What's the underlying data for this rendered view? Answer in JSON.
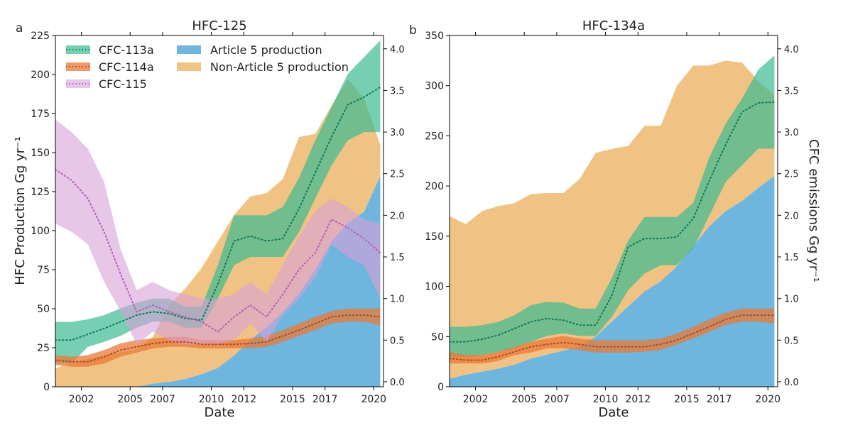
{
  "chart_data": [
    {
      "type": "area",
      "panel_label": "a",
      "title": "HFC-125",
      "xlabel": "Date",
      "ylabel": "HFC Production Gg yr⁻¹",
      "y2label": "",
      "xlim": [
        2000.4,
        2020.6
      ],
      "ylim": [
        0,
        225
      ],
      "y2lim": [
        -0.06,
        4.16
      ],
      "x_ticks": [
        2002,
        2005,
        2007,
        2010,
        2012,
        2015,
        2017,
        2020
      ],
      "x_tick_labels": [
        "2002",
        "2005",
        "2007",
        "2010",
        "2012",
        "2015",
        "2017",
        "2020"
      ],
      "y_ticks": [
        0,
        25,
        50,
        75,
        100,
        125,
        150,
        175,
        200,
        225
      ],
      "y_tick_labels": [
        "0",
        "25",
        "50",
        "75",
        "100",
        "125",
        "150",
        "175",
        "200",
        "225"
      ],
      "y2_ticks": [
        0.0,
        0.5,
        1.0,
        1.5,
        2.0,
        2.5,
        3.0,
        3.5,
        4.0
      ],
      "y2_tick_labels": [
        "0.0",
        "0.5",
        "1.0",
        "1.5",
        "2.0",
        "2.5",
        "3.0",
        "3.5",
        "4.0"
      ],
      "legend_position": "top-left",
      "legend": [
        {
          "label": "CFC-113a",
          "kind": "band"
        },
        {
          "label": "CFC-114a",
          "kind": "band"
        },
        {
          "label": "CFC-115",
          "kind": "band"
        },
        {
          "label": "Article 5 production",
          "kind": "area"
        },
        {
          "label": "Non-Article 5 production",
          "kind": "area"
        }
      ],
      "x": [
        2000.4,
        2001.4,
        2002.4,
        2003.4,
        2004.4,
        2005.4,
        2006.4,
        2007.4,
        2008.4,
        2009.4,
        2010.4,
        2011.4,
        2012.4,
        2013.4,
        2014.4,
        2015.4,
        2016.4,
        2017.4,
        2018.4,
        2019.4,
        2020.4
      ],
      "article5": [
        0,
        0,
        0,
        0,
        0,
        0,
        2,
        3,
        5,
        8,
        12,
        20,
        30,
        38,
        48,
        60,
        75,
        93,
        105,
        112,
        135
      ],
      "nonarticle5_top": [
        12,
        15,
        18,
        20,
        22,
        24,
        32,
        52,
        63,
        76,
        93,
        110,
        122,
        124,
        133,
        160,
        162,
        180,
        197,
        185,
        155
      ],
      "series": [
        {
          "name": "CFC-113a",
          "axis": "right",
          "lower": [
            0.22,
            0.22,
            0.42,
            0.48,
            0.55,
            0.65,
            0.72,
            0.72,
            0.65,
            0.65,
            1.0,
            1.4,
            1.5,
            1.5,
            1.5,
            1.8,
            2.2,
            2.6,
            2.9,
            3.0,
            3.0
          ],
          "center": [
            0.5,
            0.5,
            0.57,
            0.64,
            0.72,
            0.8,
            0.84,
            0.82,
            0.76,
            0.74,
            1.17,
            1.69,
            1.75,
            1.69,
            1.72,
            2.08,
            2.51,
            2.94,
            3.33,
            3.42,
            3.54
          ],
          "upper": [
            0.72,
            0.72,
            0.75,
            0.8,
            0.88,
            0.95,
            1.0,
            1.0,
            0.9,
            0.9,
            1.4,
            2.0,
            2.0,
            2.0,
            2.1,
            2.45,
            2.9,
            3.3,
            3.7,
            3.9,
            4.1
          ]
        },
        {
          "name": "CFC-114a",
          "axis": "right",
          "lower": [
            0.2,
            0.18,
            0.18,
            0.22,
            0.3,
            0.35,
            0.4,
            0.42,
            0.42,
            0.4,
            0.4,
            0.4,
            0.4,
            0.42,
            0.48,
            0.55,
            0.62,
            0.7,
            0.72,
            0.72,
            0.68
          ],
          "center": [
            0.26,
            0.24,
            0.24,
            0.3,
            0.38,
            0.42,
            0.46,
            0.48,
            0.48,
            0.45,
            0.45,
            0.45,
            0.46,
            0.48,
            0.55,
            0.62,
            0.7,
            0.78,
            0.8,
            0.8,
            0.78
          ],
          "upper": [
            0.32,
            0.3,
            0.32,
            0.38,
            0.46,
            0.5,
            0.52,
            0.54,
            0.54,
            0.5,
            0.5,
            0.5,
            0.52,
            0.55,
            0.62,
            0.7,
            0.78,
            0.85,
            0.88,
            0.88,
            0.88
          ]
        },
        {
          "name": "CFC-115",
          "axis": "right",
          "lower": [
            1.9,
            1.8,
            1.65,
            1.2,
            0.85,
            0.45,
            0.6,
            0.5,
            0.45,
            0.45,
            0.45,
            0.5,
            0.7,
            0.48,
            0.8,
            1.0,
            1.25,
            1.65,
            1.5,
            1.4,
            1.0
          ],
          "center": [
            2.55,
            2.42,
            2.2,
            1.8,
            1.3,
            0.84,
            0.92,
            0.84,
            0.78,
            0.72,
            0.6,
            0.78,
            0.92,
            0.78,
            1.05,
            1.35,
            1.55,
            1.95,
            1.85,
            1.72,
            1.55
          ],
          "upper": [
            3.15,
            3.0,
            2.8,
            2.4,
            1.6,
            1.1,
            1.2,
            1.1,
            1.05,
            1.0,
            1.0,
            1.05,
            1.2,
            1.05,
            1.4,
            1.75,
            2.05,
            2.2,
            2.1,
            1.95,
            1.9
          ]
        }
      ]
    },
    {
      "type": "area",
      "panel_label": "b",
      "title": "HFC-134a",
      "xlabel": "Date",
      "ylabel": "",
      "y2label": "CFC emissions Gg yr⁻¹",
      "xlim": [
        2000.4,
        2020.6
      ],
      "ylim": [
        0,
        350
      ],
      "y2lim": [
        -0.06,
        4.16
      ],
      "x_ticks": [
        2002,
        2005,
        2007,
        2010,
        2012,
        2015,
        2017,
        2020
      ],
      "x_tick_labels": [
        "2002",
        "2005",
        "2007",
        "2010",
        "2012",
        "2015",
        "2017",
        "2020"
      ],
      "y_ticks": [
        0,
        50,
        100,
        150,
        200,
        250,
        300,
        350
      ],
      "y_tick_labels": [
        "0",
        "50",
        "100",
        "150",
        "200",
        "250",
        "300",
        "350"
      ],
      "y2_ticks": [
        0.0,
        0.5,
        1.0,
        1.5,
        2.0,
        2.5,
        3.0,
        3.5,
        4.0
      ],
      "y2_tick_labels": [
        "0.0",
        "0.5",
        "1.0",
        "1.5",
        "2.0",
        "2.5",
        "3.0",
        "3.5",
        "4.0"
      ],
      "x": [
        2000.4,
        2001.4,
        2002.4,
        2003.4,
        2004.4,
        2005.4,
        2006.4,
        2007.4,
        2008.4,
        2009.4,
        2010.4,
        2011.4,
        2012.4,
        2013.4,
        2014.4,
        2015.4,
        2016.4,
        2017.4,
        2018.4,
        2019.4,
        2020.4
      ],
      "article5": [
        8,
        12,
        15,
        18,
        22,
        28,
        32,
        36,
        40,
        50,
        65,
        80,
        95,
        105,
        120,
        140,
        160,
        175,
        185,
        198,
        210
      ],
      "nonarticle5_top": [
        170,
        162,
        175,
        180,
        183,
        192,
        193,
        193,
        207,
        233,
        237,
        240,
        260,
        260,
        300,
        320,
        320,
        325,
        323,
        305,
        290
      ],
      "series": [
        {
          "name": "CFC-113a",
          "axis": "right",
          "lower": [
            0.3,
            0.3,
            0.32,
            0.36,
            0.4,
            0.48,
            0.55,
            0.58,
            0.55,
            0.55,
            0.78,
            1.1,
            1.3,
            1.4,
            1.4,
            1.6,
            2.0,
            2.4,
            2.6,
            2.8,
            2.8
          ],
          "center": [
            0.48,
            0.48,
            0.51,
            0.56,
            0.64,
            0.72,
            0.76,
            0.74,
            0.68,
            0.68,
            1.04,
            1.62,
            1.72,
            1.72,
            1.74,
            1.96,
            2.42,
            2.85,
            3.24,
            3.35,
            3.36
          ],
          "upper": [
            0.66,
            0.66,
            0.68,
            0.72,
            0.8,
            0.92,
            0.96,
            0.95,
            0.88,
            0.88,
            1.25,
            1.7,
            1.98,
            1.98,
            1.98,
            2.15,
            2.7,
            3.1,
            3.4,
            3.75,
            3.92
          ]
        },
        {
          "name": "CFC-114a",
          "axis": "right",
          "lower": [
            0.22,
            0.22,
            0.22,
            0.25,
            0.32,
            0.35,
            0.4,
            0.4,
            0.38,
            0.35,
            0.35,
            0.35,
            0.36,
            0.38,
            0.45,
            0.52,
            0.6,
            0.68,
            0.72,
            0.72,
            0.7
          ],
          "center": [
            0.28,
            0.26,
            0.26,
            0.3,
            0.36,
            0.42,
            0.45,
            0.47,
            0.45,
            0.42,
            0.42,
            0.42,
            0.42,
            0.45,
            0.5,
            0.58,
            0.66,
            0.75,
            0.8,
            0.8,
            0.8
          ],
          "upper": [
            0.36,
            0.32,
            0.32,
            0.36,
            0.42,
            0.48,
            0.52,
            0.55,
            0.52,
            0.5,
            0.5,
            0.5,
            0.5,
            0.52,
            0.58,
            0.66,
            0.75,
            0.83,
            0.88,
            0.88,
            0.88
          ]
        }
      ]
    }
  ]
}
